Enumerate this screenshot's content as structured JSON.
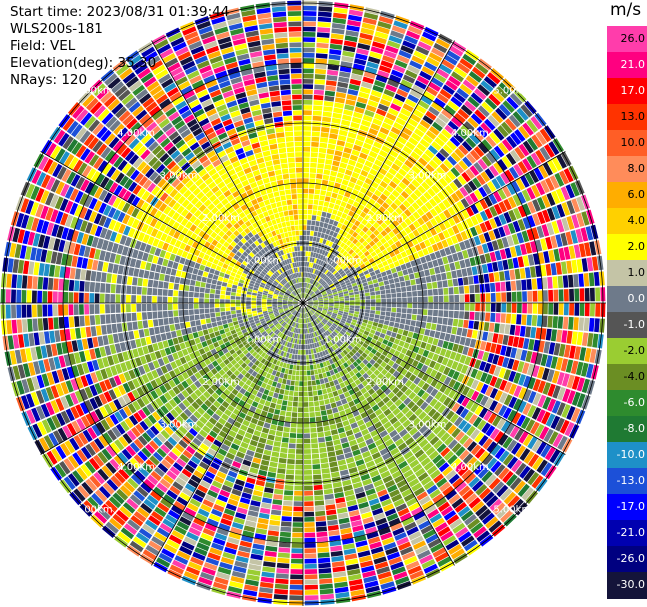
{
  "header": {
    "start_time": "Start time: 2023/08/31 01:39:44",
    "instrument": "WLS200s-181",
    "field": "Field: VEL",
    "elevation": "Elevation(deg): 35.30",
    "nrays": "NRays: 120"
  },
  "colorbar": {
    "unit": "m/s",
    "labels": [
      "26.0",
      "21.0",
      "17.0",
      "13.0",
      "10.0",
      "8.0",
      "6.0",
      "4.0",
      "2.0",
      "1.0",
      "0.0",
      "-1.0",
      "-2.0",
      "-4.0",
      "-6.0",
      "-8.0",
      "-10.0",
      "-13.0",
      "-17.0",
      "-21.0",
      "-26.0",
      "-30.0"
    ],
    "colors": [
      "#ff3dab",
      "#ff0080",
      "#ff0000",
      "#ff3300",
      "#ff5e26",
      "#ff8c5a",
      "#ffad00",
      "#ffd000",
      "#ffff00",
      "#c4c4a6",
      "#6e7a8a",
      "#555555",
      "#9acd32",
      "#6b8e23",
      "#2e8b2e",
      "#1f7a33",
      "#1e90c8",
      "#1c50d8",
      "#0000ff",
      "#0000b0",
      "#000080",
      "#14143a"
    ]
  },
  "chart_data": {
    "type": "ppi",
    "field": "VEL",
    "units": "m/s",
    "elevation_deg": 35.3,
    "n_rays": 120,
    "range_ring_labels": [
      "1.00km",
      "2.00km",
      "3.00km",
      "4.00km",
      "5.00km"
    ]
  }
}
